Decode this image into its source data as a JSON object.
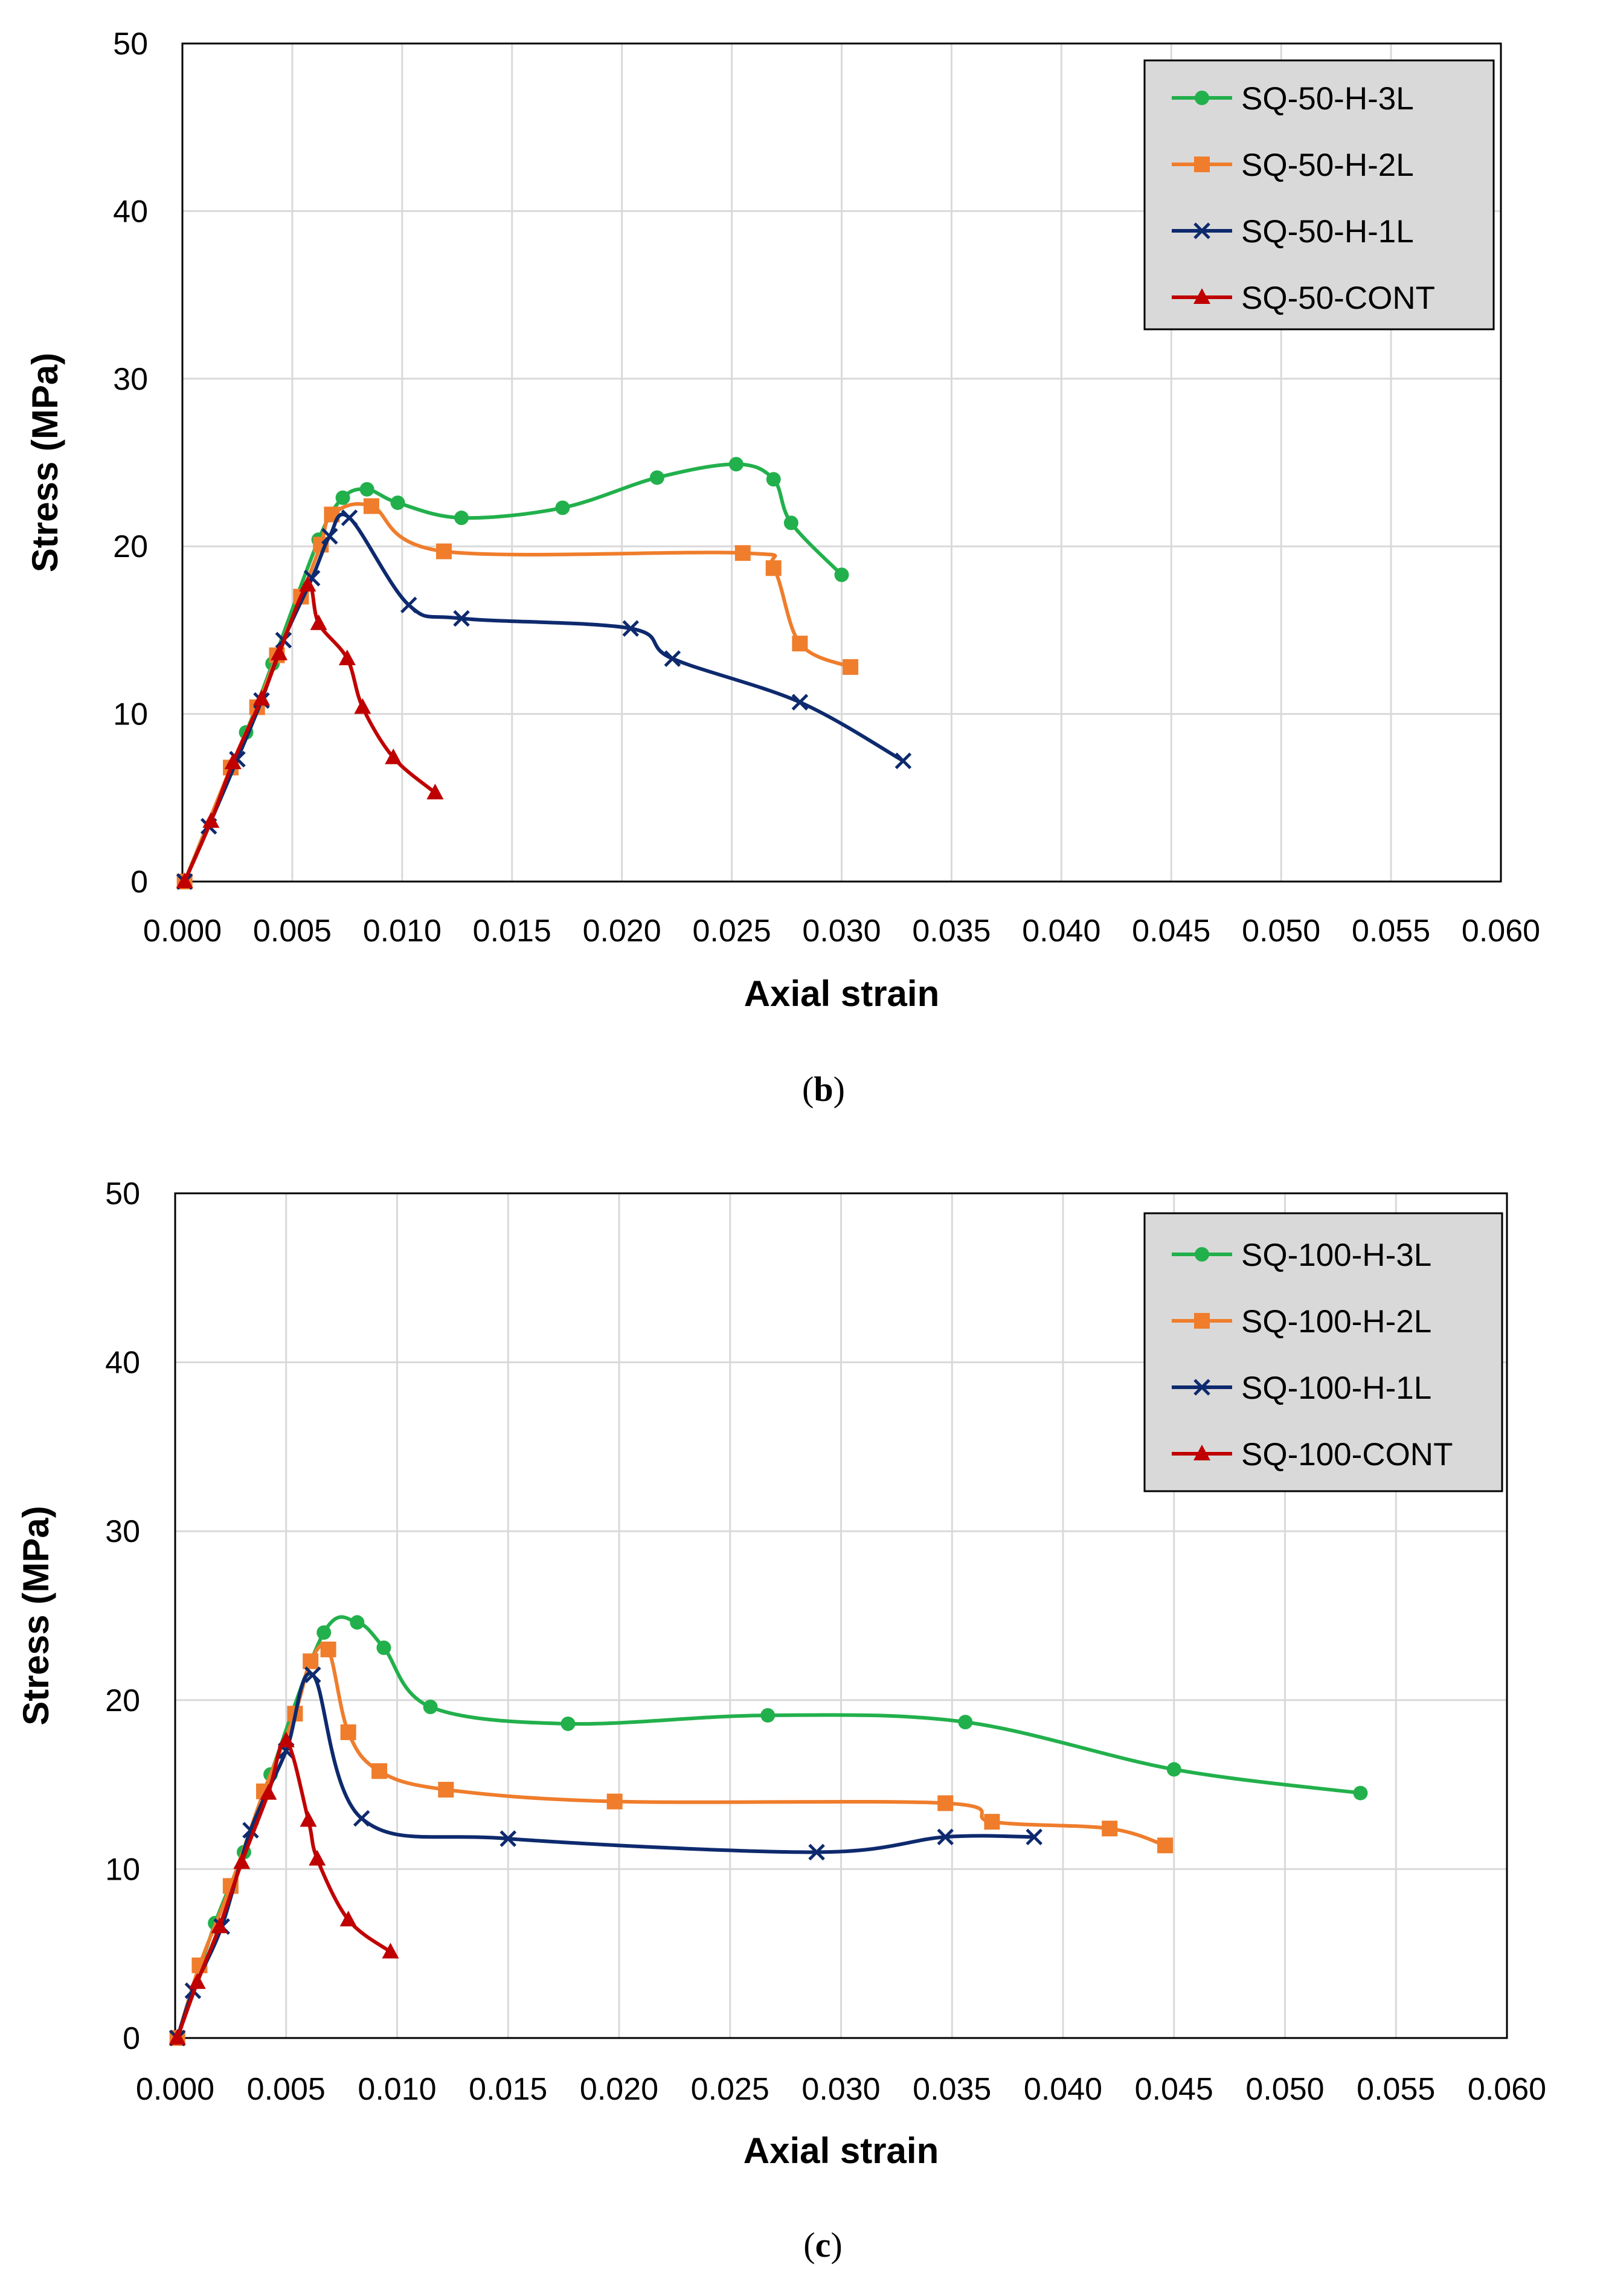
{
  "chart_data": [
    {
      "type": "line",
      "caption": "(b)",
      "caption_bold": "b",
      "xlabel": "Axial strain",
      "ylabel": "Stress (MPa)",
      "xlim": [
        0,
        0.06
      ],
      "ylim": [
        0,
        50
      ],
      "x_ticks": [
        "0.000",
        "0.005",
        "0.010",
        "0.015",
        "0.020",
        "0.025",
        "0.030",
        "0.035",
        "0.040",
        "0.045",
        "0.050",
        "0.055",
        "0.060"
      ],
      "y_ticks": [
        "0",
        "10",
        "20",
        "30",
        "40",
        "50"
      ],
      "grid": true,
      "legend_position": "top-right",
      "series": [
        {
          "name": "SQ-50-H-3L",
          "color": "#22b04c",
          "marker": "circle",
          "points": [
            [
              0.0001,
              0
            ],
            [
              0.0029,
              8.9
            ],
            [
              0.0041,
              13.0
            ],
            [
              0.0062,
              20.4
            ],
            [
              0.0073,
              22.9
            ],
            [
              0.0084,
              23.4
            ],
            [
              0.0098,
              22.6
            ],
            [
              0.0127,
              21.7
            ],
            [
              0.0173,
              22.3
            ],
            [
              0.0216,
              24.1
            ],
            [
              0.0252,
              24.9
            ],
            [
              0.0269,
              24.0
            ],
            [
              0.0277,
              21.4
            ],
            [
              0.03,
              18.3
            ]
          ]
        },
        {
          "name": "SQ-50-H-2L",
          "color": "#ef7d2c",
          "marker": "square",
          "points": [
            [
              0.0001,
              0
            ],
            [
              0.0022,
              6.8
            ],
            [
              0.0034,
              10.4
            ],
            [
              0.0043,
              13.5
            ],
            [
              0.0054,
              17.0
            ],
            [
              0.0063,
              20.1
            ],
            [
              0.0068,
              21.9
            ],
            [
              0.0086,
              22.4
            ],
            [
              0.0119,
              19.7
            ],
            [
              0.0255,
              19.6
            ],
            [
              0.0269,
              18.7
            ],
            [
              0.0281,
              14.2
            ],
            [
              0.0304,
              12.8
            ]
          ]
        },
        {
          "name": "SQ-50-H-1L",
          "color": "#0e2a6e",
          "marker": "x",
          "points": [
            [
              0.0001,
              0
            ],
            [
              0.0012,
              3.3
            ],
            [
              0.0025,
              7.3
            ],
            [
              0.0036,
              10.8
            ],
            [
              0.0046,
              14.4
            ],
            [
              0.0059,
              18.1
            ],
            [
              0.0067,
              20.6
            ],
            [
              0.0076,
              21.7
            ],
            [
              0.0103,
              16.5
            ],
            [
              0.0127,
              15.7
            ],
            [
              0.0204,
              15.1
            ],
            [
              0.0223,
              13.3
            ],
            [
              0.0281,
              10.7
            ],
            [
              0.0328,
              7.2
            ]
          ]
        },
        {
          "name": "SQ-50-CONT",
          "color": "#c00000",
          "marker": "triangle",
          "points": [
            [
              0.0001,
              0
            ],
            [
              0.0013,
              3.6
            ],
            [
              0.0023,
              7.1
            ],
            [
              0.0036,
              10.9
            ],
            [
              0.0044,
              13.6
            ],
            [
              0.0057,
              17.7
            ],
            [
              0.0062,
              15.4
            ],
            [
              0.0075,
              13.3
            ],
            [
              0.0082,
              10.4
            ],
            [
              0.0096,
              7.4
            ],
            [
              0.0115,
              5.3
            ]
          ]
        }
      ]
    },
    {
      "type": "line",
      "caption": "(c)",
      "caption_bold": "c",
      "xlabel": "Axial strain",
      "ylabel": "Stress (MPa)",
      "xlim": [
        0,
        0.06
      ],
      "ylim": [
        0,
        50
      ],
      "x_ticks": [
        "0.000",
        "0.005",
        "0.010",
        "0.015",
        "0.020",
        "0.025",
        "0.030",
        "0.035",
        "0.040",
        "0.045",
        "0.050",
        "0.055",
        "0.060"
      ],
      "y_ticks": [
        "0",
        "10",
        "20",
        "30",
        "40",
        "50"
      ],
      "grid": true,
      "legend_position": "top-right",
      "series": [
        {
          "name": "SQ-100-H-3L",
          "color": "#22b04c",
          "marker": "circle",
          "points": [
            [
              0.0001,
              0
            ],
            [
              0.0018,
              6.8
            ],
            [
              0.0031,
              11.0
            ],
            [
              0.0043,
              15.6
            ],
            [
              0.0067,
              24.0
            ],
            [
              0.0082,
              24.6
            ],
            [
              0.0094,
              23.1
            ],
            [
              0.0115,
              19.6
            ],
            [
              0.0177,
              18.6
            ],
            [
              0.0267,
              19.1
            ],
            [
              0.0356,
              18.7
            ],
            [
              0.045,
              15.9
            ],
            [
              0.0534,
              14.5
            ]
          ]
        },
        {
          "name": "SQ-100-H-2L",
          "color": "#ef7d2c",
          "marker": "square",
          "points": [
            [
              0.0001,
              0
            ],
            [
              0.0011,
              4.3
            ],
            [
              0.0025,
              9.0
            ],
            [
              0.004,
              14.6
            ],
            [
              0.0054,
              19.2
            ],
            [
              0.0061,
              22.3
            ],
            [
              0.0069,
              23.0
            ],
            [
              0.0078,
              18.1
            ],
            [
              0.0092,
              15.8
            ],
            [
              0.0122,
              14.7
            ],
            [
              0.0198,
              14.0
            ],
            [
              0.0347,
              13.9
            ],
            [
              0.0368,
              12.8
            ],
            [
              0.0421,
              12.4
            ],
            [
              0.0446,
              11.4
            ]
          ]
        },
        {
          "name": "SQ-100-H-1L",
          "color": "#0e2a6e",
          "marker": "x",
          "points": [
            [
              0.0001,
              0
            ],
            [
              0.0008,
              2.8
            ],
            [
              0.0021,
              6.6
            ],
            [
              0.0034,
              12.3
            ],
            [
              0.005,
              17.0
            ],
            [
              0.0062,
              21.5
            ],
            [
              0.0084,
              13.0
            ],
            [
              0.015,
              11.8
            ],
            [
              0.0289,
              11.0
            ],
            [
              0.0347,
              11.9
            ],
            [
              0.0387,
              11.9
            ]
          ]
        },
        {
          "name": "SQ-100-CONT",
          "color": "#c00000",
          "marker": "triangle",
          "points": [
            [
              0.0001,
              0
            ],
            [
              0.001,
              3.3
            ],
            [
              0.002,
              6.6
            ],
            [
              0.003,
              10.4
            ],
            [
              0.0042,
              14.5
            ],
            [
              0.005,
              17.6
            ],
            [
              0.006,
              12.9
            ],
            [
              0.0064,
              10.6
            ],
            [
              0.0078,
              7.0
            ],
            [
              0.0097,
              5.1
            ]
          ]
        }
      ]
    }
  ]
}
